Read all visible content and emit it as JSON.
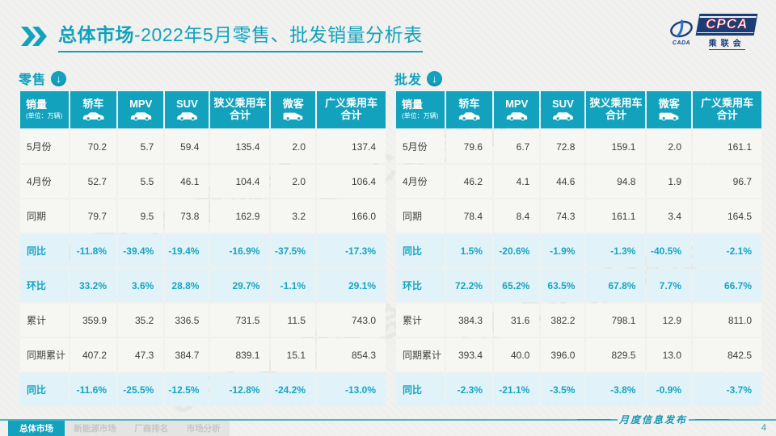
{
  "page": {
    "title_main": "总体市场",
    "title_rest": "-2022年5月零售、批发销量分析表",
    "footer_note": "月度信息发布",
    "page_number": "4"
  },
  "logo": {
    "brand": "CPCA",
    "brand_sub": "乘联会",
    "brand_left": "CADA",
    "navy": "#1b3d77",
    "red": "#cf2030"
  },
  "colors": {
    "teal": "#12a2bd",
    "light_cyan_row": "#e1f3f8",
    "value_row": "#f6f6f3",
    "percent_text": "#17a4c3"
  },
  "watermark_text": "CPCA 乘联会",
  "nav": {
    "items": [
      {
        "label": "总体市场",
        "active": true
      },
      {
        "label": "新能源市场",
        "active": false
      },
      {
        "label": "厂商排名",
        "active": false
      },
      {
        "label": "市场分析",
        "active": false
      }
    ]
  },
  "tables": [
    {
      "id": "retail",
      "section_label": "零售",
      "unit_title": "销量",
      "unit_sub": "(单位：万辆)",
      "columns": [
        {
          "label": "轿车",
          "icon": "sedan-icon"
        },
        {
          "label": "MPV",
          "icon": "mpv-icon"
        },
        {
          "label": "SUV",
          "icon": "suv-icon"
        },
        {
          "label": "狭义乘用车",
          "label2": "合计"
        },
        {
          "label": "微客",
          "icon": "microvan-icon"
        },
        {
          "label": "广义乘用车",
          "label2": "合计"
        }
      ],
      "rows": [
        {
          "label": "5月份",
          "type": "value",
          "values": [
            "70.2",
            "5.7",
            "59.4",
            "135.4",
            "2.0",
            "137.4"
          ]
        },
        {
          "label": "4月份",
          "type": "value",
          "values": [
            "52.7",
            "5.5",
            "46.1",
            "104.4",
            "2.0",
            "106.4"
          ]
        },
        {
          "label": "同期",
          "type": "value",
          "values": [
            "79.7",
            "9.5",
            "73.8",
            "162.9",
            "3.2",
            "166.0"
          ]
        },
        {
          "label": "同比",
          "type": "percent",
          "values": [
            "-11.8%",
            "-39.4%",
            "-19.4%",
            "-16.9%",
            "-37.5%",
            "-17.3%"
          ]
        },
        {
          "label": "环比",
          "type": "percent",
          "values": [
            "33.2%",
            "3.6%",
            "28.8%",
            "29.7%",
            "-1.1%",
            "29.1%"
          ]
        },
        {
          "label": "累计",
          "type": "value",
          "values": [
            "359.9",
            "35.2",
            "336.5",
            "731.5",
            "11.5",
            "743.0"
          ]
        },
        {
          "label": "同期累计",
          "type": "value",
          "values": [
            "407.2",
            "47.3",
            "384.7",
            "839.1",
            "15.1",
            "854.3"
          ]
        },
        {
          "label": "同比",
          "type": "percent",
          "values": [
            "-11.6%",
            "-25.5%",
            "-12.5%",
            "-12.8%",
            "-24.2%",
            "-13.0%"
          ]
        }
      ]
    },
    {
      "id": "wholesale",
      "section_label": "批发",
      "unit_title": "销量",
      "unit_sub": "(单位：万辆)",
      "columns": [
        {
          "label": "轿车",
          "icon": "sedan-icon"
        },
        {
          "label": "MPV",
          "icon": "mpv-icon"
        },
        {
          "label": "SUV",
          "icon": "suv-icon"
        },
        {
          "label": "狭义乘用车",
          "label2": "合计"
        },
        {
          "label": "微客",
          "icon": "microvan-icon"
        },
        {
          "label": "广义乘用车",
          "label2": "合计"
        }
      ],
      "rows": [
        {
          "label": "5月份",
          "type": "value",
          "values": [
            "79.6",
            "6.7",
            "72.8",
            "159.1",
            "2.0",
            "161.1"
          ]
        },
        {
          "label": "4月份",
          "type": "value",
          "values": [
            "46.2",
            "4.1",
            "44.6",
            "94.8",
            "1.9",
            "96.7"
          ]
        },
        {
          "label": "同期",
          "type": "value",
          "values": [
            "78.4",
            "8.4",
            "74.3",
            "161.1",
            "3.4",
            "164.5"
          ]
        },
        {
          "label": "同比",
          "type": "percent",
          "values": [
            "1.5%",
            "-20.6%",
            "-1.9%",
            "-1.3%",
            "-40.5%",
            "-2.1%"
          ]
        },
        {
          "label": "环比",
          "type": "percent",
          "values": [
            "72.2%",
            "65.2%",
            "63.5%",
            "67.8%",
            "7.7%",
            "66.7%"
          ]
        },
        {
          "label": "累计",
          "type": "value",
          "values": [
            "384.3",
            "31.6",
            "382.2",
            "798.1",
            "12.9",
            "811.0"
          ]
        },
        {
          "label": "同期累计",
          "type": "value",
          "values": [
            "393.4",
            "40.0",
            "396.0",
            "829.5",
            "13.0",
            "842.5"
          ]
        },
        {
          "label": "同比",
          "type": "percent",
          "values": [
            "-2.3%",
            "-21.1%",
            "-3.5%",
            "-3.8%",
            "-0.9%",
            "-3.7%"
          ]
        }
      ]
    }
  ]
}
